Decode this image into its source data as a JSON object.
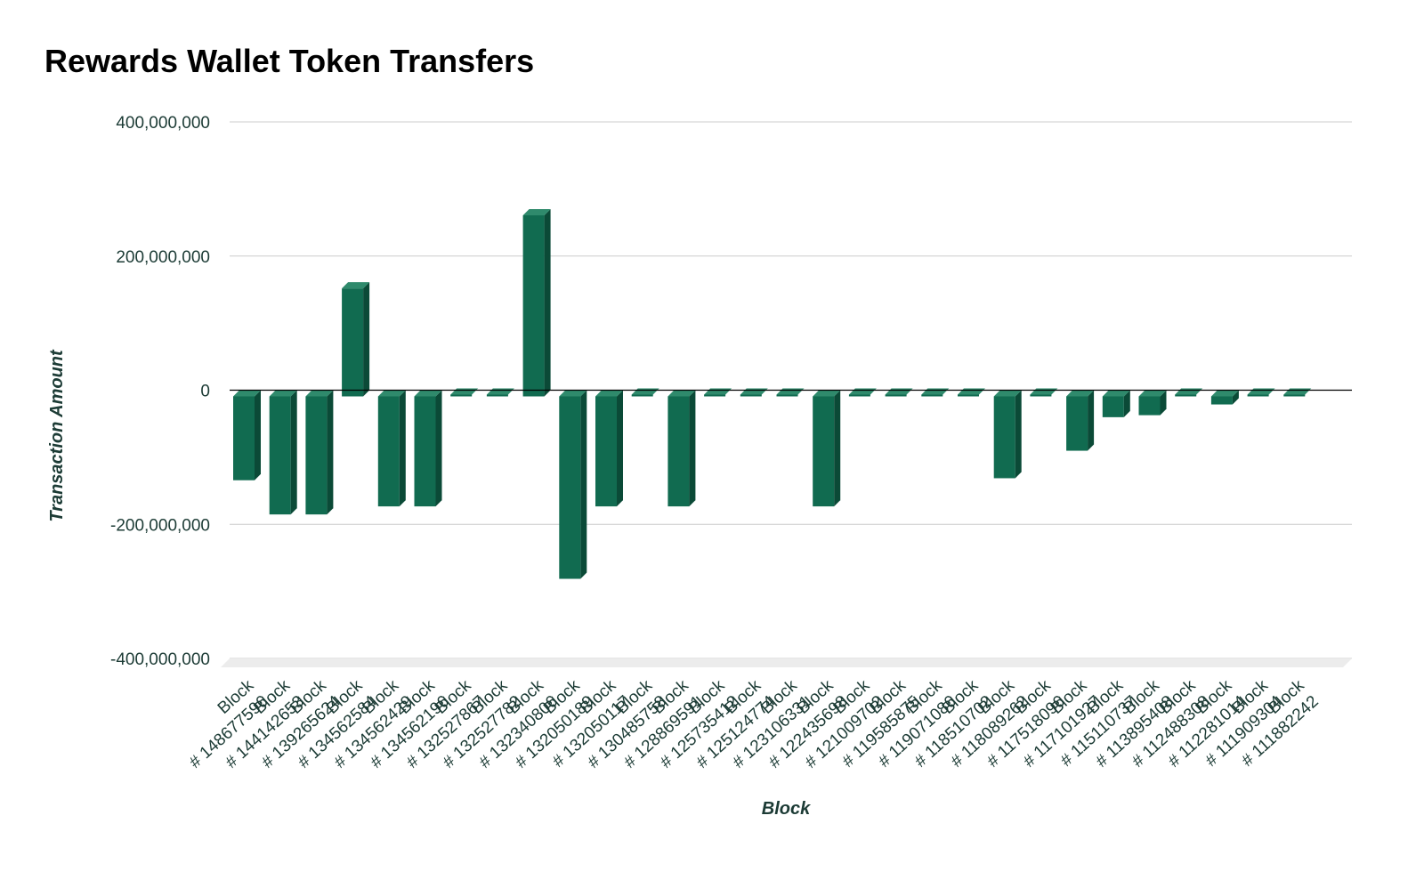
{
  "chart_data": {
    "type": "bar",
    "title": "Rewards Wallet Token Transfers",
    "xlabel": "Block",
    "ylabel": "Transaction Amount",
    "ylim": [
      -400000000,
      400000000
    ],
    "yticks": [
      400000000,
      200000000,
      0,
      -200000000,
      -400000000
    ],
    "ytick_labels": [
      "400,000,000",
      "200,000,000",
      "0",
      "-200,000,000",
      "-400,000,000"
    ],
    "grid": true,
    "legend": "none",
    "bar_color": "#116b50",
    "categories": [
      "Block # 148677596",
      "Block # 144142653",
      "Block # 139265624",
      "Block # 134562584",
      "Block # 134562429",
      "Block # 134562196",
      "Block # 132527867",
      "Block # 132527782",
      "Block # 132340806",
      "Block # 132050189",
      "Block # 132050117",
      "Block # 130485758",
      "Block # 128869591",
      "Block # 125735412",
      "Block # 125124774",
      "Block # 123106331",
      "Block # 122435698",
      "Block # 121009702",
      "Block # 119585875",
      "Block # 119071086",
      "Block # 118510702",
      "Block # 118089262",
      "Block # 117518096",
      "Block # 117101927",
      "Block # 115110737",
      "Block # 113895408",
      "Block # 112488308",
      "Block # 112281014",
      "Block # 111909304",
      "Block # 111882242"
    ],
    "values": [
      -125000000,
      -176000000,
      -176000000,
      161000000,
      -164000000,
      -164000000,
      0,
      0,
      270000000,
      -272000000,
      -164000000,
      0,
      -164000000,
      0,
      0,
      0,
      -164000000,
      0,
      0,
      0,
      0,
      -122000000,
      0,
      -81000000,
      -31000000,
      -28000000,
      0,
      -12000000,
      0,
      0
    ]
  }
}
